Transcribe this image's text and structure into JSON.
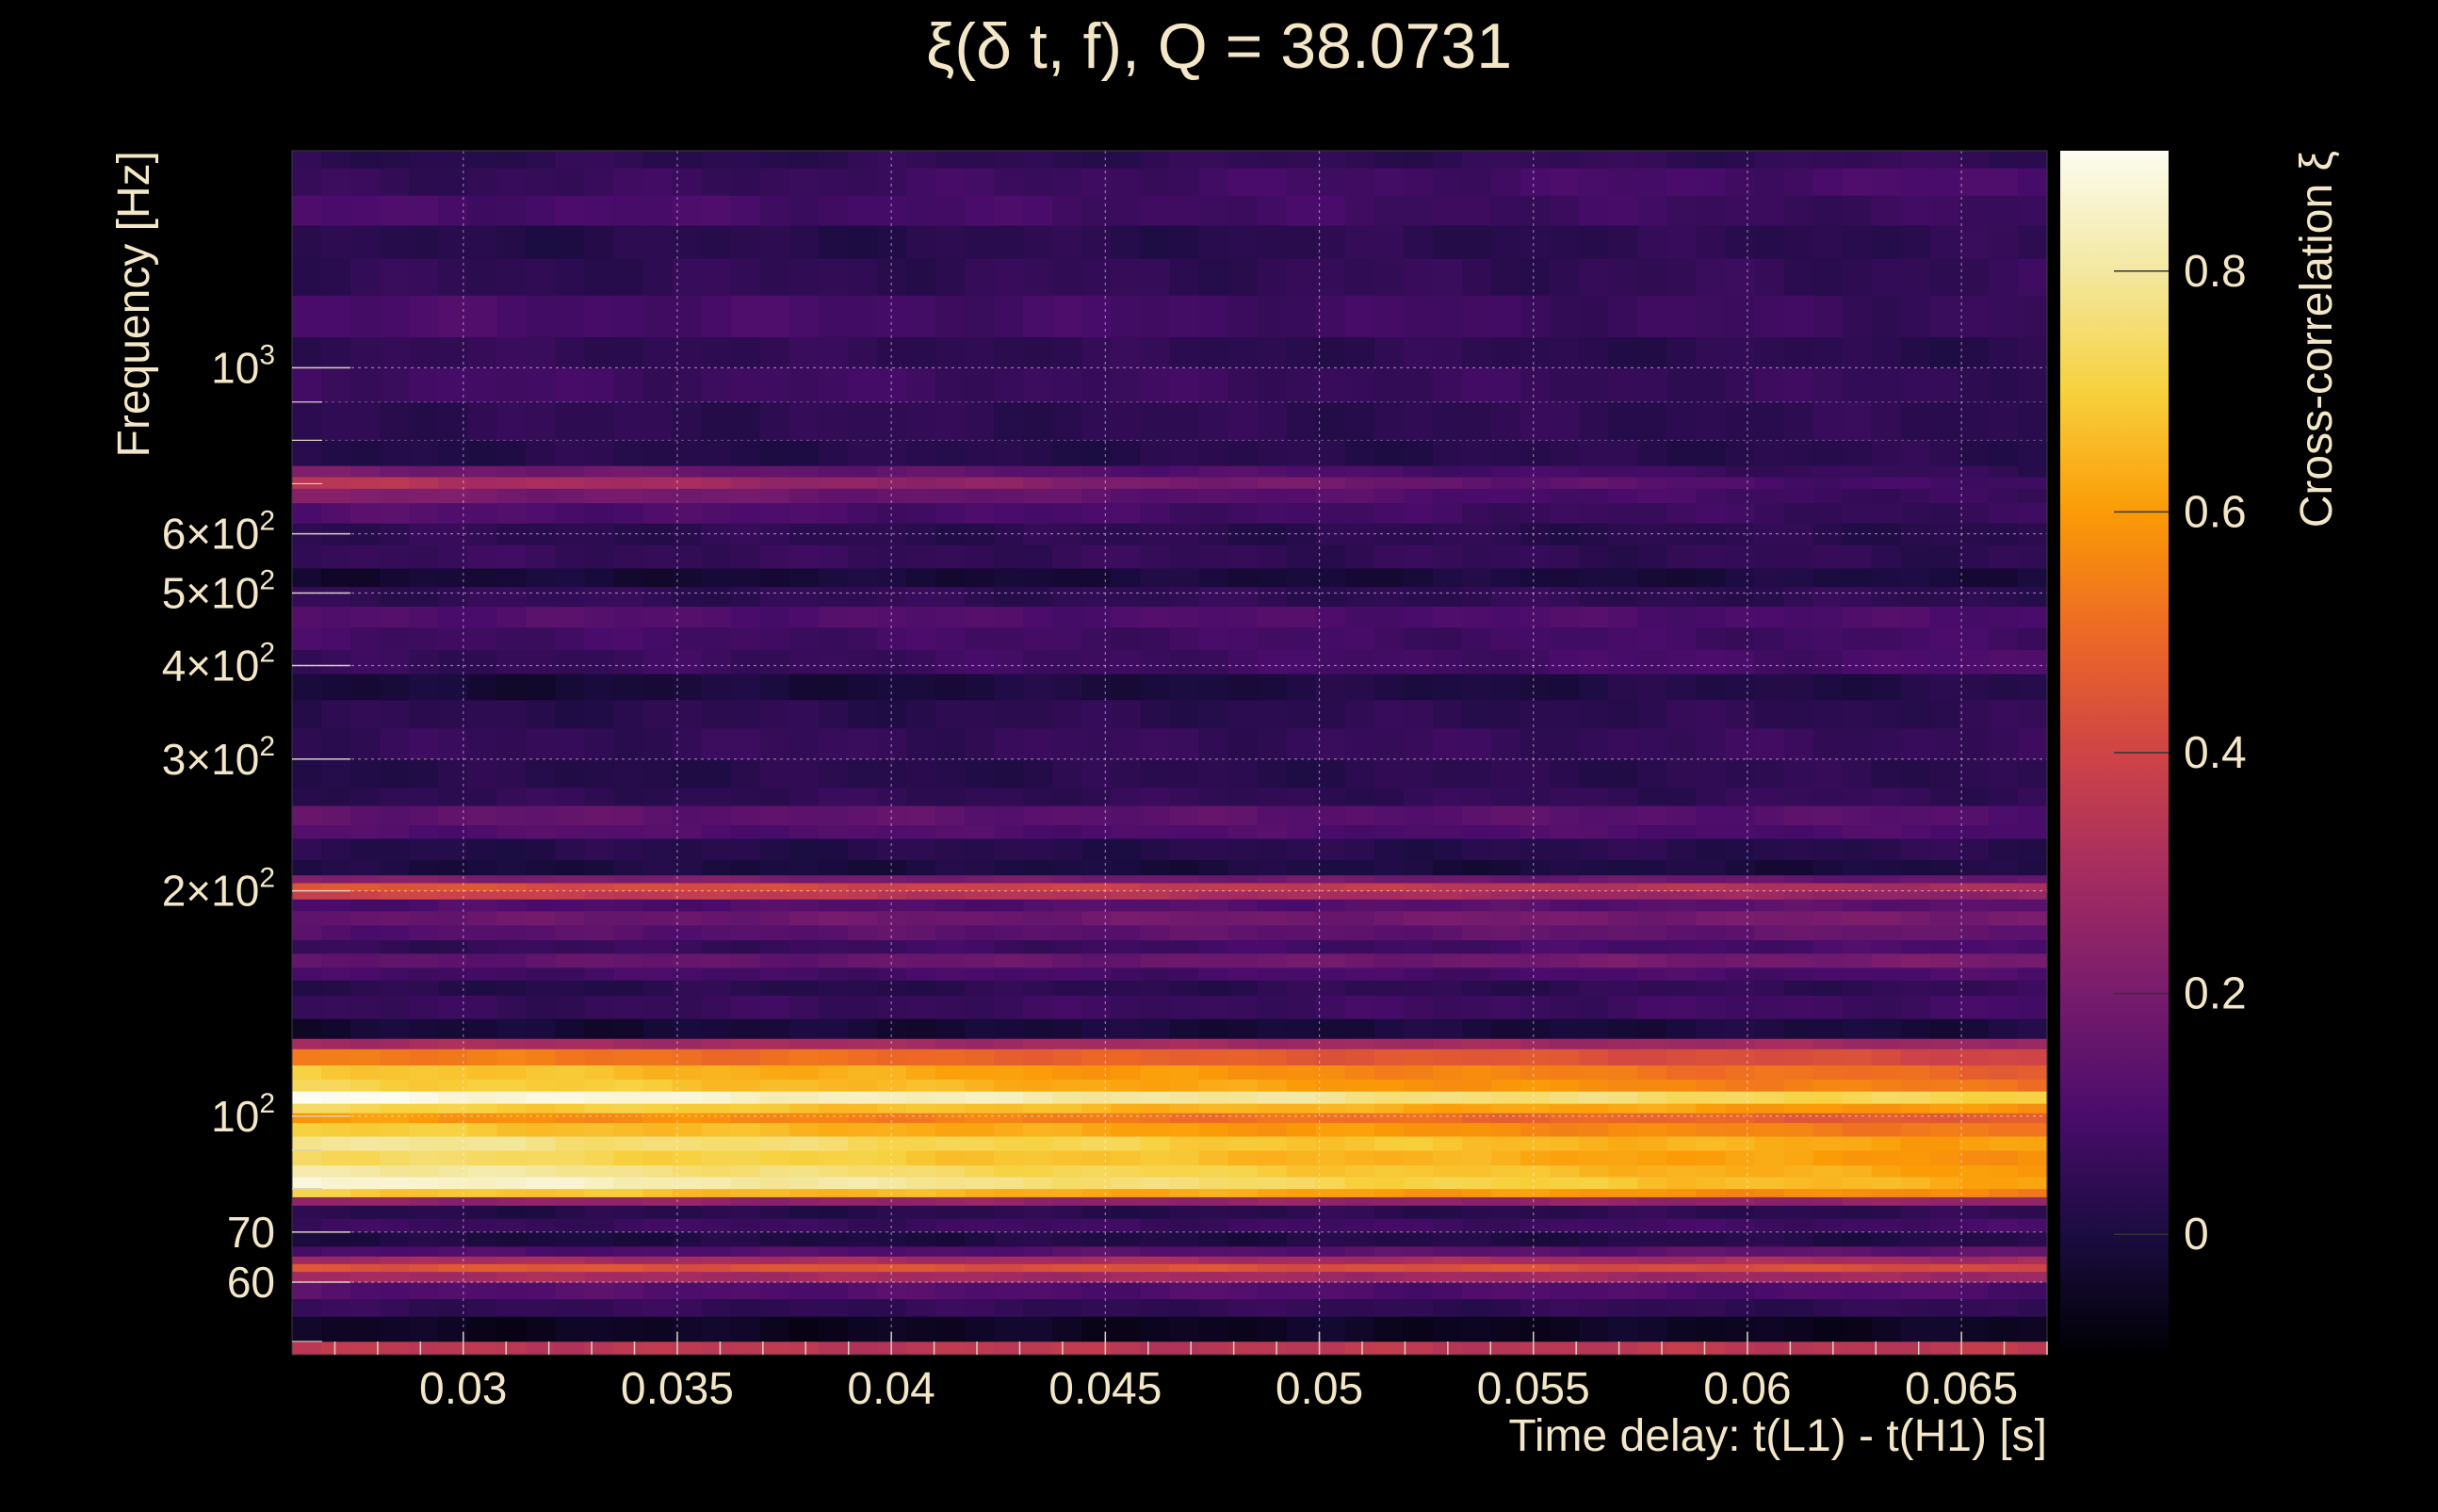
{
  "chart_data": {
    "type": "heatmap",
    "title": "ξ(δ t, f), Q = 38.0731",
    "xlabel": "Time delay: t(L1) - t(H1) [s]",
    "ylabel": "Frequency [Hz]",
    "colorbar_label": "Cross-correlation ξ",
    "x_range": [
      0.026,
      0.067
    ],
    "y_range": [
      48,
      1950
    ],
    "y_scale": "log",
    "x_ticks": [
      {
        "value": 0.03,
        "label": "0.03"
      },
      {
        "value": 0.035,
        "label": "0.035"
      },
      {
        "value": 0.04,
        "label": "0.04"
      },
      {
        "value": 0.045,
        "label": "0.045"
      },
      {
        "value": 0.05,
        "label": "0.05"
      },
      {
        "value": 0.055,
        "label": "0.055"
      },
      {
        "value": 0.06,
        "label": "0.06"
      },
      {
        "value": 0.065,
        "label": "0.065"
      }
    ],
    "y_ticks": [
      {
        "value": 60,
        "label": "60"
      },
      {
        "value": 70,
        "label": "70"
      },
      {
        "value": 100,
        "label": "10",
        "sup": "2"
      },
      {
        "value": 200,
        "label": "2×10",
        "sup": "2"
      },
      {
        "value": 300,
        "label": "3×10",
        "sup": "2"
      },
      {
        "value": 400,
        "label": "4×10",
        "sup": "2"
      },
      {
        "value": 500,
        "label": "5×10",
        "sup": "2"
      },
      {
        "value": 600,
        "label": "6×10",
        "sup": "2"
      },
      {
        "value": 1000,
        "label": "10",
        "sup": "3"
      }
    ],
    "colorbar": {
      "range": [
        -0.1,
        0.9
      ],
      "ticks": [
        {
          "value": 0,
          "label": "0"
        },
        {
          "value": 0.2,
          "label": "0.2"
        },
        {
          "value": 0.4,
          "label": "0.4"
        },
        {
          "value": 0.6,
          "label": "0.6"
        },
        {
          "value": 0.8,
          "label": "0.8"
        }
      ],
      "colormap": "inferno"
    },
    "grid": true,
    "bands": [
      {
        "f_low": 48,
        "f_high": 50,
        "xi_start": 0.35,
        "xi_end": 0.35
      },
      {
        "f_low": 50,
        "f_high": 54,
        "xi_start": -0.05,
        "xi_end": -0.05
      },
      {
        "f_low": 54,
        "f_high": 57,
        "xi_start": 0.05,
        "xi_end": 0.04
      },
      {
        "f_low": 57,
        "f_high": 60,
        "xi_start": 0.12,
        "xi_end": 0.1
      },
      {
        "f_low": 60,
        "f_high": 62,
        "xi_start": 0.3,
        "xi_end": 0.28
      },
      {
        "f_low": 62,
        "f_high": 63.5,
        "xi_start": 0.45,
        "xi_end": 0.42
      },
      {
        "f_low": 63.5,
        "f_high": 65,
        "xi_start": 0.3,
        "xi_end": 0.3
      },
      {
        "f_low": 65,
        "f_high": 67,
        "xi_start": 0.1,
        "xi_end": 0.15
      },
      {
        "f_low": 67,
        "f_high": 70,
        "xi_start": 0.0,
        "xi_end": 0.02
      },
      {
        "f_low": 70,
        "f_high": 73,
        "xi_start": 0.06,
        "xi_end": 0.08
      },
      {
        "f_low": 73,
        "f_high": 76,
        "xi_start": 0.02,
        "xi_end": 0.04
      },
      {
        "f_low": 76,
        "f_high": 78,
        "xi_start": 0.25,
        "xi_end": 0.25
      },
      {
        "f_low": 78,
        "f_high": 80,
        "xi_start": 0.7,
        "xi_end": 0.55
      },
      {
        "f_low": 80,
        "f_high": 83,
        "xi_start": 0.88,
        "xi_end": 0.62
      },
      {
        "f_low": 83,
        "f_high": 86,
        "xi_start": 0.82,
        "xi_end": 0.6
      },
      {
        "f_low": 86,
        "f_high": 90,
        "xi_start": 0.75,
        "xi_end": 0.58
      },
      {
        "f_low": 90,
        "f_high": 94,
        "xi_start": 0.8,
        "xi_end": 0.6
      },
      {
        "f_low": 94,
        "f_high": 98,
        "xi_start": 0.7,
        "xi_end": 0.52
      },
      {
        "f_low": 98,
        "f_high": 101,
        "xi_start": 0.6,
        "xi_end": 0.45
      },
      {
        "f_low": 101,
        "f_high": 104,
        "xi_start": 0.72,
        "xi_end": 0.58
      },
      {
        "f_low": 104,
        "f_high": 108,
        "xi_start": 0.9,
        "xi_end": 0.7
      },
      {
        "f_low": 108,
        "f_high": 112,
        "xi_start": 0.72,
        "xi_end": 0.52
      },
      {
        "f_low": 112,
        "f_high": 117,
        "xi_start": 0.7,
        "xi_end": 0.48
      },
      {
        "f_low": 117,
        "f_high": 123,
        "xi_start": 0.55,
        "xi_end": 0.4
      },
      {
        "f_low": 123,
        "f_high": 127,
        "xi_start": 0.3,
        "xi_end": 0.28
      },
      {
        "f_low": 127,
        "f_high": 135,
        "xi_start": -0.02,
        "xi_end": 0.0
      },
      {
        "f_low": 135,
        "f_high": 145,
        "xi_start": 0.05,
        "xi_end": 0.08
      },
      {
        "f_low": 145,
        "f_high": 152,
        "xi_start": 0.02,
        "xi_end": 0.05
      },
      {
        "f_low": 152,
        "f_high": 158,
        "xi_start": 0.08,
        "xi_end": 0.1
      },
      {
        "f_low": 158,
        "f_high": 165,
        "xi_start": 0.14,
        "xi_end": 0.2
      },
      {
        "f_low": 165,
        "f_high": 172,
        "xi_start": 0.05,
        "xi_end": 0.1
      },
      {
        "f_low": 172,
        "f_high": 180,
        "xi_start": 0.12,
        "xi_end": 0.16
      },
      {
        "f_low": 180,
        "f_high": 188,
        "xi_start": 0.16,
        "xi_end": 0.2
      },
      {
        "f_low": 188,
        "f_high": 195,
        "xi_start": 0.1,
        "xi_end": 0.14
      },
      {
        "f_low": 195,
        "f_high": 200,
        "xi_start": 0.4,
        "xi_end": 0.24
      },
      {
        "f_low": 200,
        "f_high": 205,
        "xi_start": 0.45,
        "xi_end": 0.3
      },
      {
        "f_low": 205,
        "f_high": 210,
        "xi_start": 0.22,
        "xi_end": 0.15
      },
      {
        "f_low": 210,
        "f_high": 220,
        "xi_start": 0.0,
        "xi_end": 0.0
      },
      {
        "f_low": 220,
        "f_high": 235,
        "xi_start": 0.02,
        "xi_end": 0.03
      },
      {
        "f_low": 235,
        "f_high": 245,
        "xi_start": 0.12,
        "xi_end": 0.1
      },
      {
        "f_low": 245,
        "f_high": 260,
        "xi_start": 0.15,
        "xi_end": 0.12
      },
      {
        "f_low": 260,
        "f_high": 275,
        "xi_start": 0.04,
        "xi_end": 0.05
      },
      {
        "f_low": 275,
        "f_high": 300,
        "xi_start": 0.02,
        "xi_end": 0.04
      },
      {
        "f_low": 300,
        "f_high": 330,
        "xi_start": 0.05,
        "xi_end": 0.06
      },
      {
        "f_low": 330,
        "f_high": 360,
        "xi_start": 0.03,
        "xi_end": 0.04
      },
      {
        "f_low": 360,
        "f_high": 390,
        "xi_start": -0.02,
        "xi_end": 0.02
      },
      {
        "f_low": 390,
        "f_high": 420,
        "xi_start": 0.05,
        "xi_end": 0.1
      },
      {
        "f_low": 420,
        "f_high": 450,
        "xi_start": 0.08,
        "xi_end": 0.08
      },
      {
        "f_low": 450,
        "f_high": 480,
        "xi_start": 0.12,
        "xi_end": 0.1
      },
      {
        "f_low": 480,
        "f_high": 510,
        "xi_start": 0.05,
        "xi_end": 0.04
      },
      {
        "f_low": 510,
        "f_high": 540,
        "xi_start": -0.02,
        "xi_end": 0.0
      },
      {
        "f_low": 540,
        "f_high": 580,
        "xi_start": 0.06,
        "xi_end": 0.04
      },
      {
        "f_low": 580,
        "f_high": 620,
        "xi_start": 0.04,
        "xi_end": 0.03
      },
      {
        "f_low": 620,
        "f_high": 660,
        "xi_start": 0.12,
        "xi_end": 0.05
      },
      {
        "f_low": 660,
        "f_high": 690,
        "xi_start": 0.22,
        "xi_end": 0.05
      },
      {
        "f_low": 690,
        "f_high": 715,
        "xi_start": 0.35,
        "xi_end": 0.06
      },
      {
        "f_low": 715,
        "f_high": 740,
        "xi_start": 0.2,
        "xi_end": 0.04
      },
      {
        "f_low": 740,
        "f_high": 800,
        "xi_start": 0.02,
        "xi_end": 0.03
      },
      {
        "f_low": 800,
        "f_high": 900,
        "xi_start": 0.04,
        "xi_end": 0.04
      },
      {
        "f_low": 900,
        "f_high": 1000,
        "xi_start": 0.08,
        "xi_end": 0.05
      },
      {
        "f_low": 1000,
        "f_high": 1100,
        "xi_start": 0.05,
        "xi_end": 0.03
      },
      {
        "f_low": 1100,
        "f_high": 1250,
        "xi_start": 0.1,
        "xi_end": 0.06
      },
      {
        "f_low": 1250,
        "f_high": 1400,
        "xi_start": 0.04,
        "xi_end": 0.05
      },
      {
        "f_low": 1400,
        "f_high": 1550,
        "xi_start": 0.02,
        "xi_end": 0.04
      },
      {
        "f_low": 1550,
        "f_high": 1700,
        "xi_start": 0.1,
        "xi_end": 0.06
      },
      {
        "f_low": 1700,
        "f_high": 1850,
        "xi_start": 0.05,
        "xi_end": 0.1
      },
      {
        "f_low": 1850,
        "f_high": 1950,
        "xi_start": 0.03,
        "xi_end": 0.05
      }
    ]
  }
}
